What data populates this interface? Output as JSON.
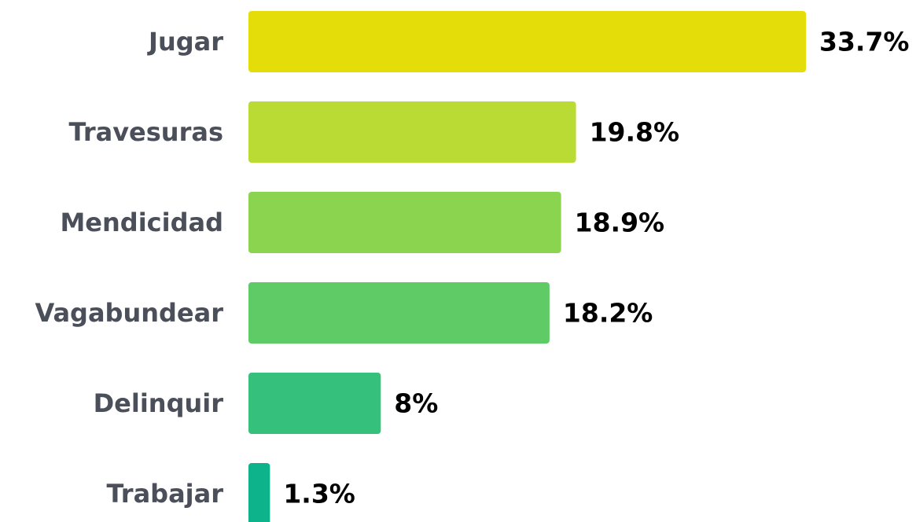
{
  "chart_data": {
    "type": "bar",
    "orientation": "horizontal",
    "categories": [
      "Jugar",
      "Travesuras",
      "Mendicidad",
      "Vagabundear",
      "Delinquir",
      "Trabajar"
    ],
    "values": [
      33.7,
      19.8,
      18.9,
      18.2,
      8,
      1.3
    ],
    "value_labels": [
      "33.7%",
      "19.8%",
      "18.9%",
      "18.2%",
      "8%",
      "1.3%"
    ],
    "colors": [
      "#e5dd0a",
      "#bada34",
      "#8ad44f",
      "#5fcb66",
      "#35c17b",
      "#0db38a"
    ]
  }
}
